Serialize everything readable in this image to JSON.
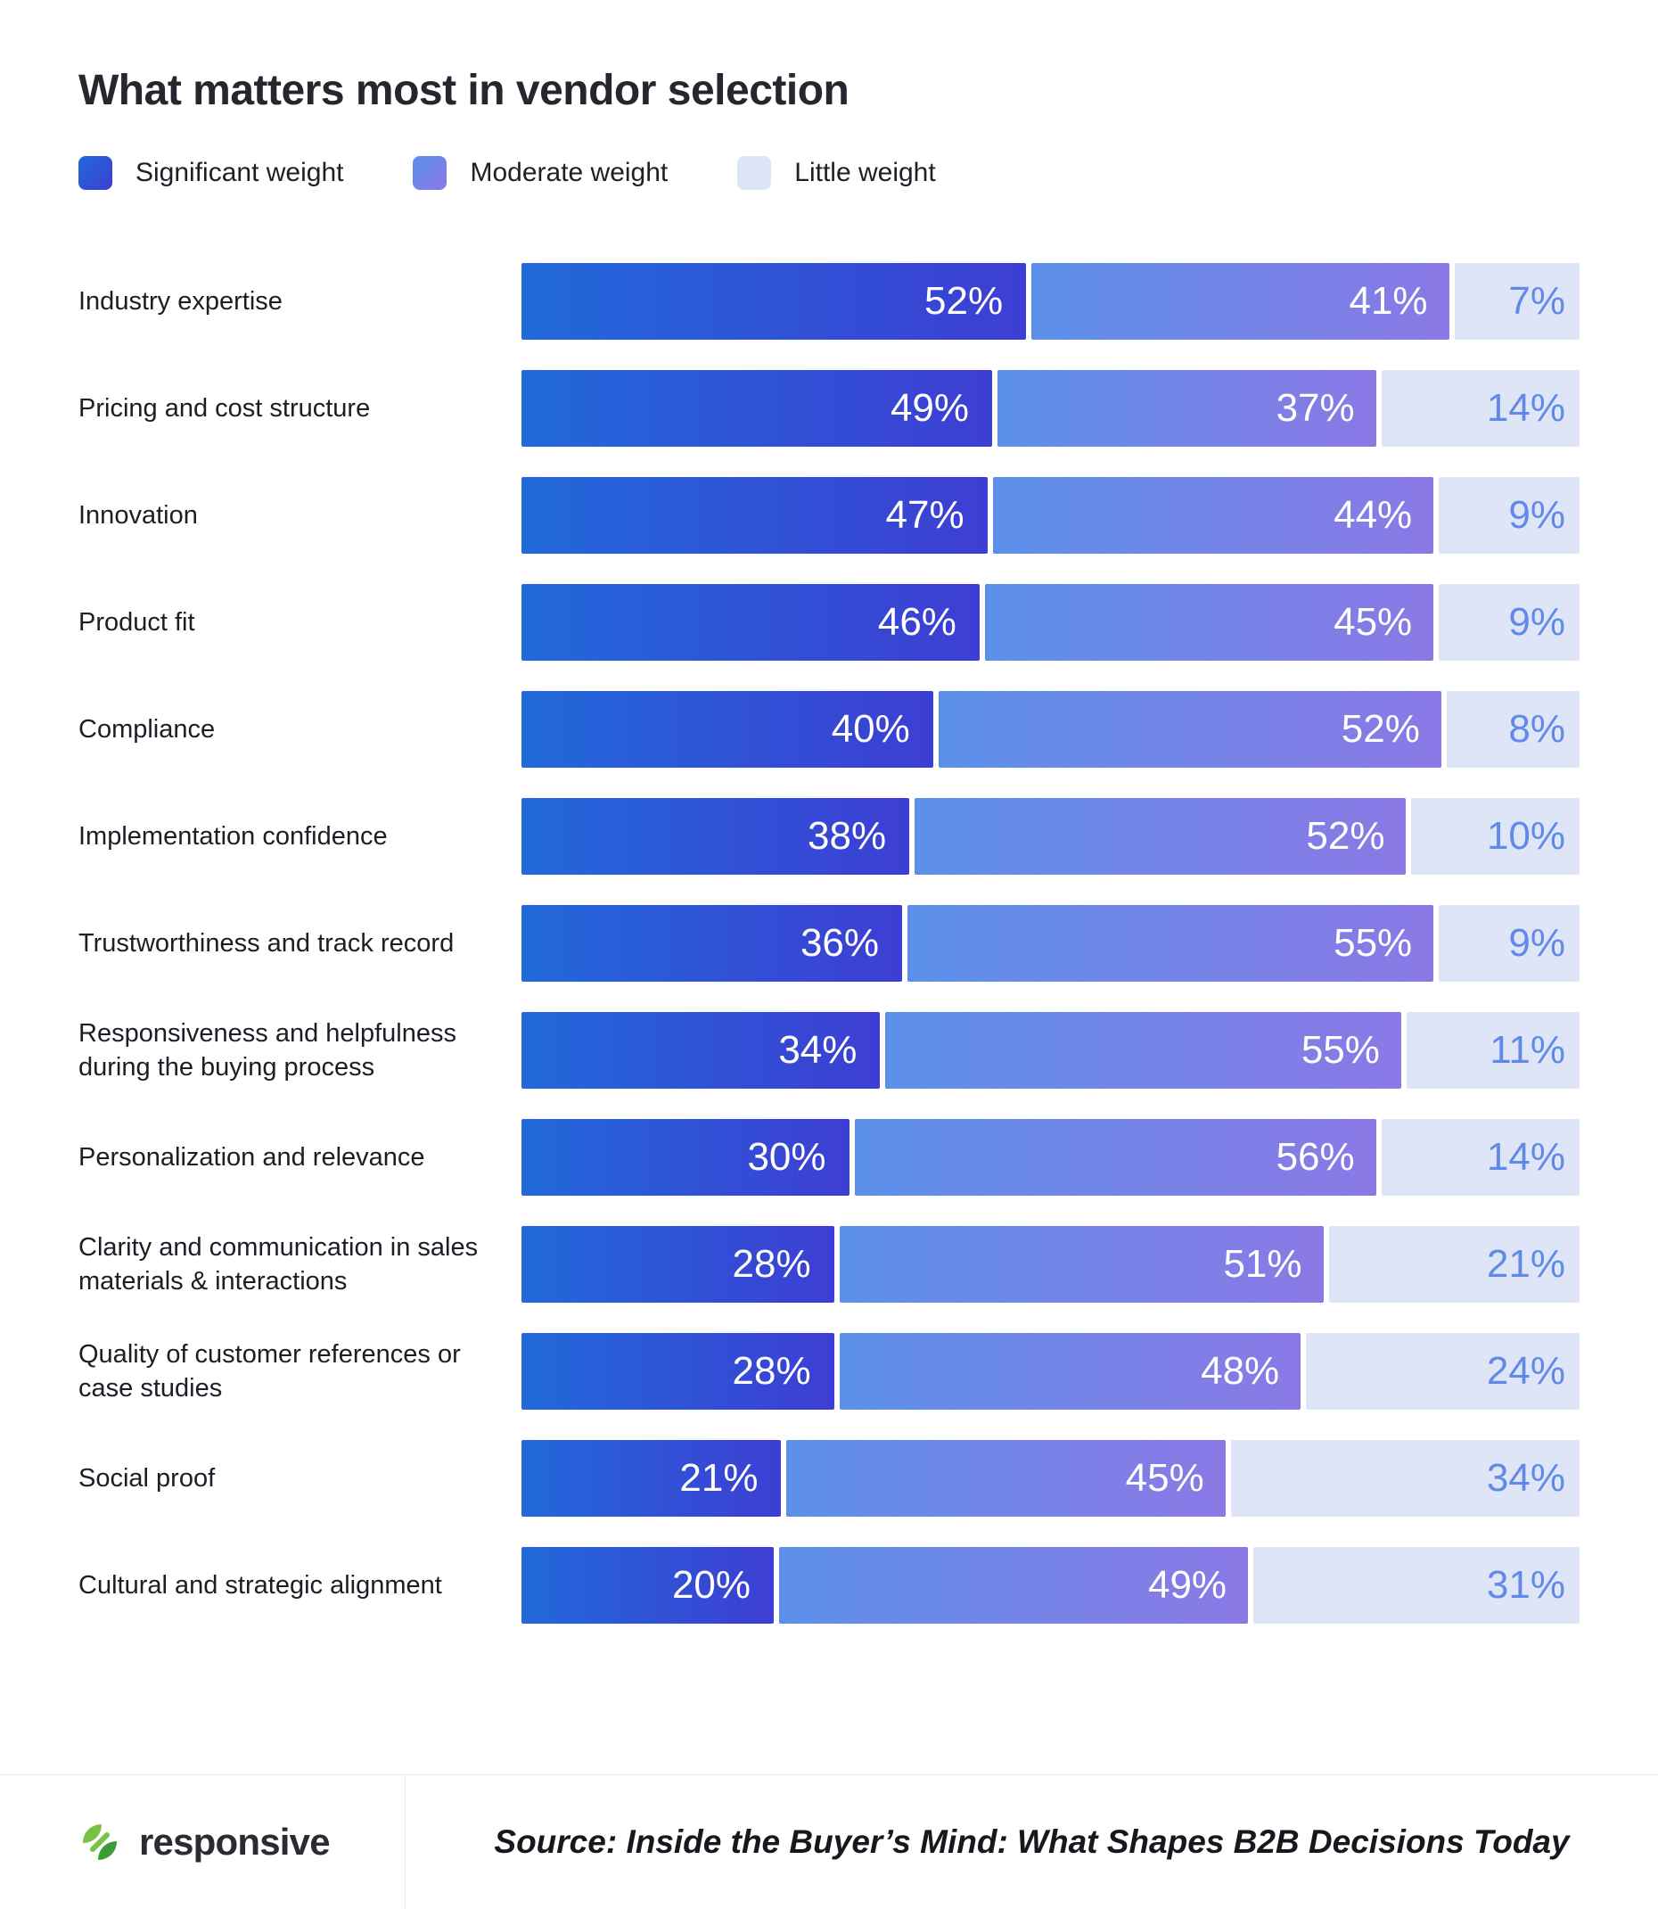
{
  "title": "What matters most in vendor selection",
  "legend": [
    {
      "label": "Significant weight"
    },
    {
      "label": "Moderate weight"
    },
    {
      "label": "Little weight"
    }
  ],
  "colors": {
    "significant_start": "#2169da",
    "significant_end": "#3d3ed3",
    "moderate_start": "#5b90e9",
    "moderate_end": "#8b79e6",
    "little": "#dde5f7",
    "little_text": "#6189e8"
  },
  "chart_data": {
    "type": "bar",
    "orientation": "horizontal",
    "stacked": true,
    "unit": "%",
    "title": "What matters most in vendor selection",
    "categories": [
      "Industry expertise",
      "Pricing and cost structure",
      "Innovation",
      "Product fit",
      "Compliance",
      "Implementation confidence",
      "Trustworthiness and track record",
      "Responsiveness and helpfulness during the buying process",
      "Personalization and relevance",
      "Clarity and communication in sales materials & interactions",
      "Quality of customer references or case studies",
      "Social proof",
      "Cultural and strategic alignment"
    ],
    "series": [
      {
        "name": "Significant weight",
        "key": "significant",
        "values": [
          52,
          49,
          47,
          46,
          40,
          38,
          36,
          34,
          30,
          28,
          28,
          21,
          20
        ]
      },
      {
        "name": "Moderate weight",
        "key": "moderate",
        "values": [
          41,
          37,
          44,
          45,
          52,
          52,
          55,
          55,
          56,
          51,
          48,
          45,
          49
        ]
      },
      {
        "name": "Little weight",
        "key": "little",
        "values": [
          7,
          14,
          9,
          9,
          8,
          10,
          9,
          11,
          14,
          21,
          24,
          34,
          31
        ]
      }
    ],
    "xlim": [
      0,
      100
    ],
    "legend_position": "top",
    "grid": false
  },
  "footer": {
    "brand": "responsive",
    "source": "Source: Inside the Buyer’s Mind: What Shapes B2B Decisions Today"
  }
}
